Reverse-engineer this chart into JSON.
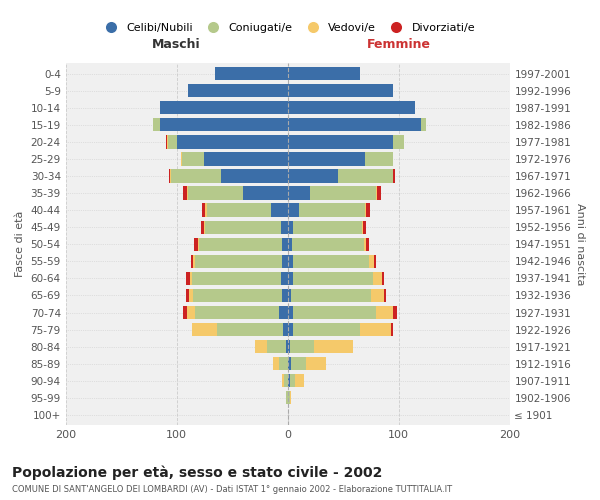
{
  "age_groups": [
    "100+",
    "95-99",
    "90-94",
    "85-89",
    "80-84",
    "75-79",
    "70-74",
    "65-69",
    "60-64",
    "55-59",
    "50-54",
    "45-49",
    "40-44",
    "35-39",
    "30-34",
    "25-29",
    "20-24",
    "15-19",
    "10-14",
    "5-9",
    "0-4"
  ],
  "birth_years": [
    "≤ 1901",
    "1902-1906",
    "1907-1911",
    "1912-1916",
    "1917-1921",
    "1922-1926",
    "1927-1931",
    "1932-1936",
    "1937-1941",
    "1942-1946",
    "1947-1951",
    "1952-1956",
    "1957-1961",
    "1962-1966",
    "1967-1971",
    "1972-1976",
    "1977-1981",
    "1982-1986",
    "1987-1991",
    "1992-1996",
    "1997-2001"
  ],
  "males": {
    "celibi": [
      0,
      0,
      0,
      0,
      1,
      4,
      8,
      5,
      6,
      5,
      5,
      6,
      15,
      40,
      60,
      75,
      100,
      115,
      115,
      90,
      65
    ],
    "coniugati": [
      0,
      1,
      3,
      8,
      18,
      60,
      75,
      80,
      80,
      78,
      75,
      68,
      58,
      50,
      45,
      20,
      8,
      6,
      0,
      0,
      0
    ],
    "vedovi": [
      0,
      0,
      2,
      5,
      10,
      22,
      8,
      4,
      2,
      2,
      1,
      1,
      1,
      1,
      1,
      1,
      1,
      0,
      0,
      0,
      0
    ],
    "divorziati": [
      0,
      0,
      0,
      0,
      0,
      0,
      3,
      3,
      4,
      2,
      3,
      3,
      3,
      3,
      1,
      0,
      1,
      0,
      0,
      0,
      0
    ]
  },
  "females": {
    "nubili": [
      0,
      0,
      2,
      3,
      2,
      5,
      5,
      3,
      5,
      5,
      4,
      5,
      10,
      20,
      45,
      70,
      95,
      120,
      115,
      95,
      65
    ],
    "coniugate": [
      0,
      2,
      5,
      14,
      22,
      60,
      75,
      72,
      72,
      68,
      65,
      62,
      60,
      60,
      50,
      25,
      10,
      5,
      0,
      0,
      0
    ],
    "vedove": [
      0,
      1,
      8,
      18,
      35,
      28,
      15,
      12,
      8,
      5,
      2,
      1,
      1,
      1,
      0,
      0,
      0,
      0,
      0,
      0,
      0
    ],
    "divorziate": [
      0,
      0,
      0,
      0,
      0,
      2,
      4,
      2,
      2,
      2,
      2,
      3,
      3,
      3,
      2,
      0,
      0,
      0,
      0,
      0,
      0
    ]
  },
  "colors": {
    "celibi": "#3b6ea8",
    "coniugati": "#b5c98b",
    "vedovi": "#f5c96a",
    "divorziati": "#cc2222"
  },
  "xlim": 200,
  "title": "Popolazione per età, sesso e stato civile - 2002",
  "subtitle": "COMUNE DI SANT'ANGELO DEI LOMBARDI (AV) - Dati ISTAT 1° gennaio 2002 - Elaborazione TUTTITALIA.IT",
  "ylabel_left": "Fasce di età",
  "ylabel_right": "Anni di nascita",
  "xlabel_maschi": "Maschi",
  "xlabel_femmine": "Femmine",
  "background_color": "#ffffff",
  "grid_color": "#cccccc",
  "legend_labels": [
    "Celibi/Nubili",
    "Coniugati/e",
    "Vedovi/e",
    "Divorziati/e"
  ]
}
